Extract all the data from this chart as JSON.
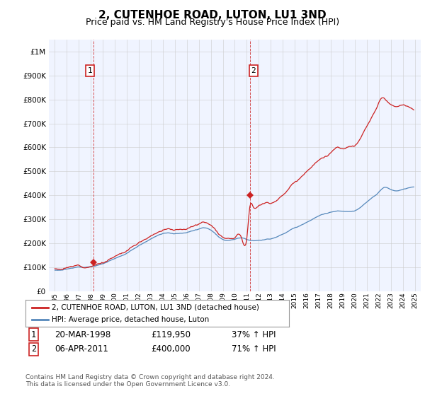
{
  "title": "2, CUTENHOE ROAD, LUTON, LU1 3ND",
  "subtitle": "Price paid vs. HM Land Registry's House Price Index (HPI)",
  "title_fontsize": 11,
  "subtitle_fontsize": 9,
  "background_color": "#ffffff",
  "plot_bg_color": "#f0f4ff",
  "grid_color": "#cccccc",
  "ylim": [
    0,
    1050000
  ],
  "yticks": [
    0,
    100000,
    200000,
    300000,
    400000,
    500000,
    600000,
    700000,
    800000,
    900000,
    1000000
  ],
  "ytick_labels": [
    "£0",
    "£100K",
    "£200K",
    "£300K",
    "£400K",
    "£500K",
    "£600K",
    "£700K",
    "£800K",
    "£900K",
    "£1M"
  ],
  "hpi_color": "#5588bb",
  "price_color": "#cc2222",
  "sale1_year": 1998.21,
  "sale1_price": 119950,
  "sale2_year": 2011.26,
  "sale2_price": 400000,
  "legend_label1": "2, CUTENHOE ROAD, LUTON, LU1 3ND (detached house)",
  "legend_label2": "HPI: Average price, detached house, Luton",
  "footer1": "Contains HM Land Registry data © Crown copyright and database right 2024.",
  "footer2": "This data is licensed under the Open Government Licence v3.0.",
  "xlim_left": 1995.0,
  "xlim_right": 2025.5
}
